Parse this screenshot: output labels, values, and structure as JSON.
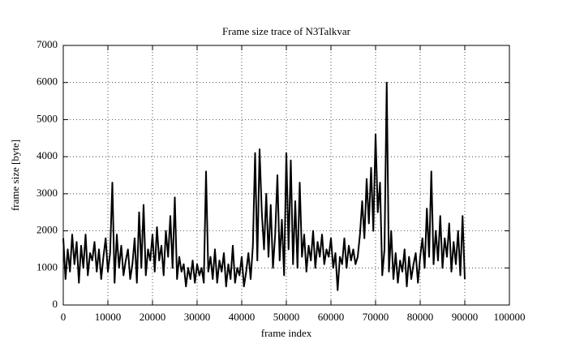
{
  "chart_data": {
    "type": "line",
    "title": "Frame size trace of N3Talkvar",
    "x_label": "frame index",
    "y_label": "frame size [byte]",
    "x": [
      0,
      500,
      1000,
      1500,
      2000,
      2500,
      3000,
      3500,
      4000,
      4500,
      5000,
      5500,
      6000,
      6500,
      7000,
      7500,
      8000,
      8500,
      9000,
      9500,
      10000,
      10500,
      11000,
      11500,
      12000,
      12500,
      13000,
      13500,
      14000,
      14500,
      15000,
      15500,
      16000,
      16500,
      17000,
      17500,
      18000,
      18500,
      19000,
      19500,
      20000,
      20500,
      21000,
      21500,
      22000,
      22500,
      23000,
      23500,
      24000,
      24500,
      25000,
      25500,
      26000,
      26500,
      27000,
      27500,
      28000,
      28500,
      29000,
      29500,
      30000,
      30500,
      31000,
      31500,
      32000,
      32500,
      33000,
      33500,
      34000,
      34500,
      35000,
      35500,
      36000,
      36500,
      37000,
      37500,
      38000,
      38500,
      39000,
      39500,
      40000,
      40500,
      41000,
      41500,
      42000,
      42500,
      43000,
      43500,
      44000,
      44500,
      45000,
      45500,
      46000,
      46500,
      47000,
      47500,
      48000,
      48500,
      49000,
      49500,
      50000,
      50500,
      51000,
      51500,
      52000,
      52500,
      53000,
      53500,
      54000,
      54500,
      55000,
      55500,
      56000,
      56500,
      57000,
      57500,
      58000,
      58500,
      59000,
      59500,
      60000,
      60500,
      61000,
      61500,
      62000,
      62500,
      63000,
      63500,
      64000,
      64500,
      65000,
      65500,
      66000,
      66500,
      67000,
      67500,
      68000,
      68500,
      69000,
      69500,
      70000,
      70500,
      71000,
      71500,
      72000,
      72500,
      73000,
      73500,
      74000,
      74500,
      75000,
      75500,
      76000,
      76500,
      77000,
      77500,
      78000,
      78500,
      79000,
      79500,
      80000,
      80500,
      81000,
      81500,
      82000,
      82500,
      83000,
      83500,
      84000,
      84500,
      85000,
      85500,
      86000,
      86500,
      87000,
      87500,
      88000,
      88500,
      89000,
      89500,
      90000
    ],
    "y": [
      1800,
      700,
      1500,
      900,
      1900,
      1100,
      1700,
      600,
      1600,
      1000,
      1900,
      800,
      1400,
      1200,
      1700,
      900,
      1500,
      700,
      1300,
      1800,
      900,
      1400,
      3300,
      600,
      1900,
      1000,
      1600,
      800,
      1200,
      1500,
      700,
      1100,
      1800,
      600,
      2500,
      1000,
      2700,
      800,
      1500,
      1200,
      1900,
      900,
      2100,
      1200,
      1600,
      800,
      2000,
      1300,
      2400,
      1000,
      2900,
      700,
      1300,
      900,
      1100,
      500,
      1000,
      700,
      1200,
      600,
      1100,
      800,
      1000,
      600,
      3600,
      900,
      1300,
      700,
      1500,
      600,
      1200,
      900,
      1400,
      500,
      1100,
      700,
      1600,
      600,
      1000,
      800,
      1300,
      500,
      900,
      1400,
      700,
      1600,
      4100,
      1200,
      4200,
      2500,
      1500,
      3000,
      1300,
      2700,
      1000,
      1900,
      3500,
      1200,
      2300,
      800,
      4100,
      1500,
      3900,
      1100,
      2800,
      1000,
      3300,
      1300,
      1900,
      900,
      1600,
      1200,
      2000,
      1000,
      1700,
      1300,
      1900,
      1100,
      1500,
      1300,
      1800,
      1000,
      1400,
      400,
      1300,
      1100,
      1800,
      1000,
      1600,
      1200,
      1500,
      1100,
      1300,
      1900,
      2800,
      1800,
      3400,
      2200,
      3700,
      2000,
      4600,
      2500,
      3300,
      800,
      1500,
      6000,
      900,
      2000,
      700,
      1400,
      600,
      1200,
      900,
      1500,
      500,
      1300,
      700,
      1100,
      1400,
      600,
      1300,
      1800,
      1000,
      2600,
      1300,
      3600,
      1100,
      2000,
      1200,
      2400,
      1000,
      1800,
      1300,
      2200,
      900,
      1700,
      1100,
      2000,
      800,
      2400,
      700
    ],
    "color": "#000000",
    "xlim": [
      0,
      100000
    ],
    "xticks": [
      0,
      10000,
      20000,
      30000,
      40000,
      50000,
      60000,
      70000,
      80000,
      90000,
      100000
    ],
    "ylim": [
      0,
      7000
    ],
    "yticks": [
      0,
      1000,
      2000,
      3000,
      4000,
      5000,
      6000,
      7000
    ],
    "grid": true
  }
}
